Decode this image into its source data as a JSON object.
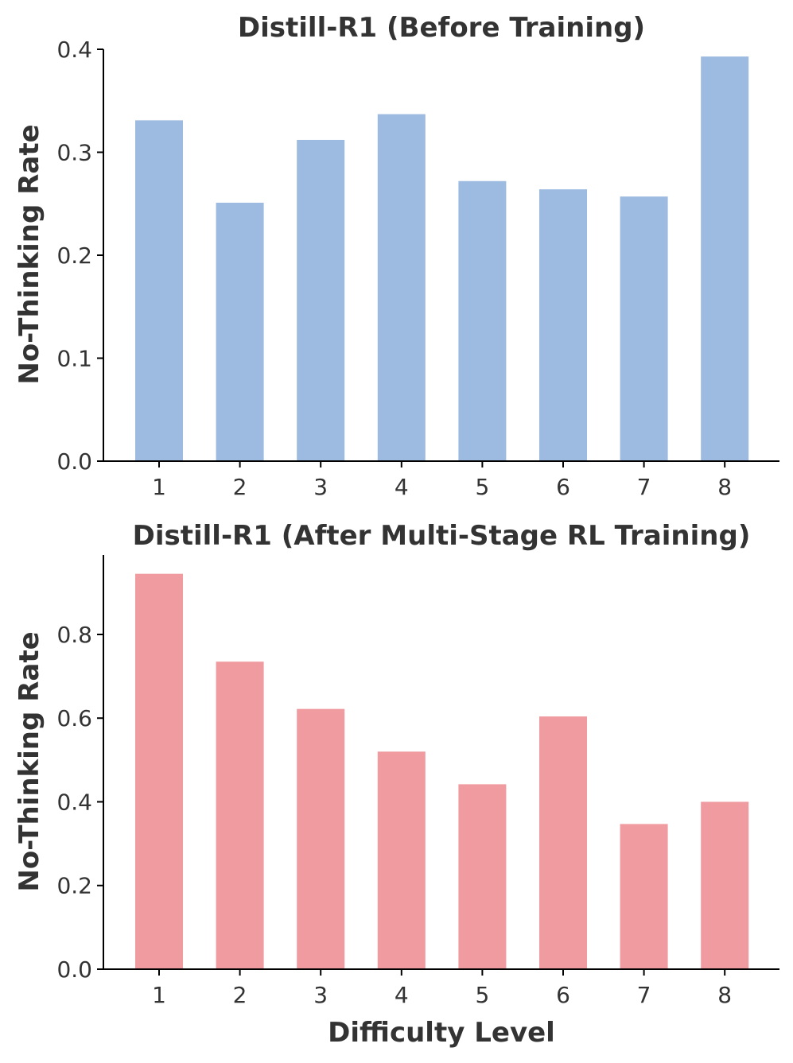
{
  "chart_data": [
    {
      "type": "bar",
      "title": "Distill-R1 (Before Training)",
      "xlabel": "",
      "ylabel": "No-Thinking Rate",
      "categories": [
        "1",
        "2",
        "3",
        "4",
        "5",
        "6",
        "7",
        "8"
      ],
      "values": [
        0.331,
        0.251,
        0.312,
        0.337,
        0.272,
        0.264,
        0.257,
        0.393
      ],
      "ylim": [
        0,
        0.4
      ],
      "yticks": [
        "0.0",
        "0.1",
        "0.2",
        "0.3",
        "0.4"
      ],
      "ytick_values": [
        0,
        0.1,
        0.2,
        0.3,
        0.4
      ],
      "color": "#9dbbe0",
      "grid": false
    },
    {
      "type": "bar",
      "title": "Distill-R1 (After Multi-Stage RL Training)",
      "xlabel": "Difficulty Level",
      "ylabel": "No-Thinking Rate",
      "categories": [
        "1",
        "2",
        "3",
        "4",
        "5",
        "6",
        "7",
        "8"
      ],
      "values": [
        0.945,
        0.735,
        0.622,
        0.52,
        0.442,
        0.604,
        0.347,
        0.4
      ],
      "ylim": [
        0,
        0.99
      ],
      "yticks": [
        "0.0",
        "0.2",
        "0.4",
        "0.6",
        "0.8"
      ],
      "ytick_values": [
        0,
        0.2,
        0.4,
        0.6,
        0.8
      ],
      "color": "#ef9ba0",
      "grid": false
    }
  ]
}
